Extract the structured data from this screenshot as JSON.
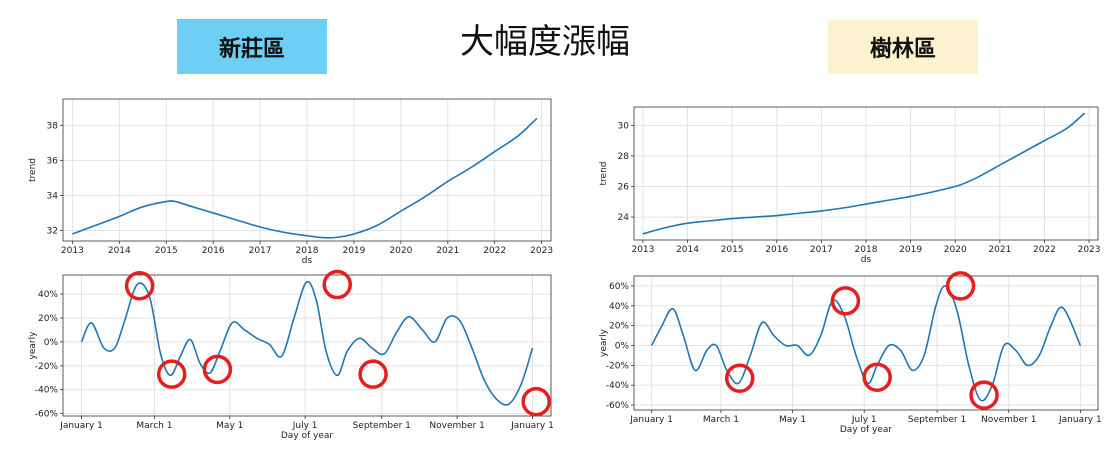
{
  "header": {
    "left_badge": "新莊區",
    "right_badge": "樹林區",
    "title": "大幅度漲幅",
    "colors": {
      "left_badge_bg": "#6ecff6",
      "right_badge_bg": "#fdf2cf",
      "line": "#1f77b4",
      "circle": "#e61e1e"
    }
  },
  "chart_data": [
    {
      "id": "xinzhuang-trend",
      "type": "line",
      "xlabel": "ds",
      "ylabel": "trend",
      "xlim": [
        2012.8,
        2023.2
      ],
      "ylim": [
        31.4,
        39.5
      ],
      "xticks": [
        2013,
        2014,
        2015,
        2016,
        2017,
        2018,
        2019,
        2020,
        2021,
        2022,
        2023
      ],
      "yticks": [
        32,
        34,
        36,
        38
      ],
      "series": [
        {
          "x": [
            2013,
            2013.5,
            2014,
            2014.5,
            2015,
            2015.2,
            2015.5,
            2016,
            2016.5,
            2017,
            2017.5,
            2018,
            2018.3,
            2018.6,
            2019,
            2019.5,
            2020,
            2020.5,
            2021,
            2021.5,
            2022,
            2022.5,
            2022.9
          ],
          "y": [
            31.8,
            32.3,
            32.8,
            33.35,
            33.65,
            33.65,
            33.4,
            33.0,
            32.6,
            32.2,
            31.9,
            31.7,
            31.6,
            31.6,
            31.8,
            32.3,
            33.1,
            33.9,
            34.8,
            35.6,
            36.5,
            37.4,
            38.4
          ]
        }
      ]
    },
    {
      "id": "xinzhuang-yearly",
      "type": "line",
      "xlabel": "Day of year",
      "ylabel": "yearly",
      "xlim": [
        -15,
        380
      ],
      "ylim": [
        -62,
        56
      ],
      "xticks": [
        0,
        59,
        120,
        181,
        243,
        304,
        365
      ],
      "xticklabels": [
        "January 1",
        "March 1",
        "May 1",
        "July 1",
        "September 1",
        "November 1",
        "January 1"
      ],
      "yticks": [
        -60,
        -40,
        -20,
        0,
        20,
        40
      ],
      "yticklabels": [
        "-60%",
        "-40%",
        "-20%",
        "0%",
        "20%",
        "40%"
      ],
      "series": [
        {
          "x": [
            0,
            8,
            18,
            27,
            35,
            45,
            55,
            64,
            72,
            80,
            88,
            96,
            104,
            112,
            122,
            132,
            142,
            152,
            162,
            172,
            182,
            190,
            198,
            207,
            215,
            225,
            235,
            245,
            255,
            265,
            276,
            286,
            296,
            306,
            316,
            326,
            336,
            346,
            356,
            365
          ],
          "y": [
            0,
            16,
            -5,
            -5,
            18,
            48,
            38,
            -10,
            -28,
            -12,
            2,
            -18,
            -26,
            -8,
            16,
            10,
            3,
            -2,
            -12,
            20,
            50,
            35,
            -8,
            -28,
            -8,
            3,
            -5,
            -10,
            8,
            21,
            10,
            0,
            20,
            18,
            -5,
            -32,
            -48,
            -52,
            -35,
            -5
          ]
        }
      ],
      "circled_points": [
        {
          "x": 47,
          "y": 47
        },
        {
          "x": 73,
          "y": -27
        },
        {
          "x": 110,
          "y": -23
        },
        {
          "x": 207,
          "y": 48
        },
        {
          "x": 236,
          "y": -27
        },
        {
          "x": 368,
          "y": -50
        }
      ]
    },
    {
      "id": "shulin-trend",
      "type": "line",
      "xlabel": "ds",
      "ylabel": "trend",
      "xlim": [
        2012.8,
        2023.2
      ],
      "ylim": [
        22.5,
        31.2
      ],
      "xticks": [
        2013,
        2014,
        2015,
        2016,
        2017,
        2018,
        2019,
        2020,
        2021,
        2022,
        2023
      ],
      "yticks": [
        24,
        26,
        28,
        30
      ],
      "series": [
        {
          "x": [
            2013,
            2013.5,
            2014,
            2014.5,
            2015,
            2015.5,
            2016,
            2016.5,
            2017,
            2017.5,
            2018,
            2018.5,
            2019,
            2019.5,
            2020,
            2020.2,
            2020.5,
            2021,
            2021.5,
            2022,
            2022.5,
            2022.9
          ],
          "y": [
            22.9,
            23.3,
            23.6,
            23.75,
            23.9,
            24.0,
            24.1,
            24.25,
            24.4,
            24.6,
            24.85,
            25.1,
            25.35,
            25.65,
            26.0,
            26.2,
            26.6,
            27.4,
            28.2,
            29.0,
            29.8,
            30.8
          ]
        }
      ]
    },
    {
      "id": "shulin-yearly",
      "type": "line",
      "xlabel": "Day of year",
      "ylabel": "yearly",
      "xlim": [
        -15,
        380
      ],
      "ylim": [
        -65,
        70
      ],
      "xticks": [
        0,
        59,
        120,
        181,
        243,
        304,
        365
      ],
      "xticklabels": [
        "January 1",
        "March 1",
        "May 1",
        "July 1",
        "September 1",
        "November 1",
        "January 1"
      ],
      "yticks": [
        -60,
        -40,
        -20,
        0,
        20,
        40,
        60
      ],
      "yticklabels": [
        "-60%",
        "-40%",
        "-20%",
        "0%",
        "20%",
        "40%",
        "60%"
      ],
      "series": [
        {
          "x": [
            0,
            8,
            18,
            27,
            37,
            47,
            55,
            64,
            74,
            84,
            94,
            104,
            114,
            124,
            134,
            144,
            154,
            164,
            174,
            184,
            192,
            202,
            212,
            222,
            232,
            242,
            250,
            260,
            270,
            280,
            290,
            300,
            310,
            320,
            330,
            340,
            350,
            365
          ],
          "y": [
            0,
            18,
            37,
            10,
            -25,
            -5,
            0,
            -25,
            -38,
            -10,
            23,
            10,
            0,
            0,
            -10,
            10,
            45,
            30,
            -10,
            -38,
            -20,
            0,
            -5,
            -25,
            -10,
            40,
            60,
            35,
            -20,
            -55,
            -40,
            0,
            -5,
            -20,
            -10,
            20,
            38,
            0
          ]
        }
      ],
      "circled_points": [
        {
          "x": 75,
          "y": -33
        },
        {
          "x": 165,
          "y": 45
        },
        {
          "x": 192,
          "y": -32
        },
        {
          "x": 263,
          "y": 60
        },
        {
          "x": 283,
          "y": -50
        }
      ]
    }
  ]
}
